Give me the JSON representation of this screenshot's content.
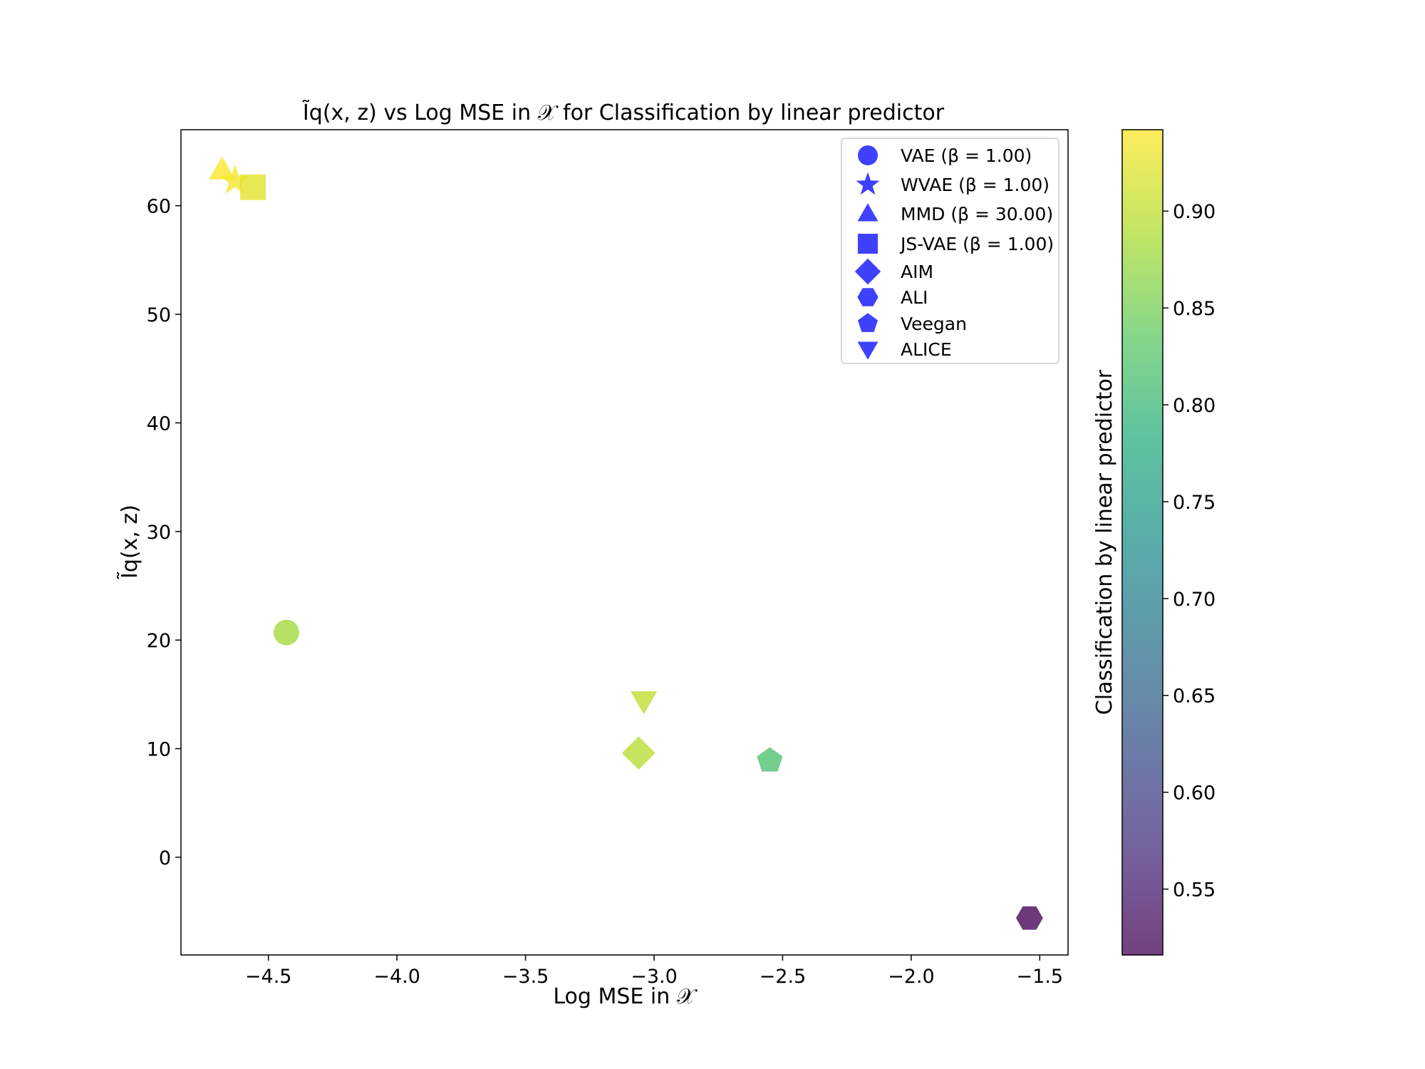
{
  "chart_data": {
    "type": "scatter",
    "title": "Ĩq(x, z) vs Log MSE in 𝒳 for Classification by linear predictor",
    "xlabel": "Log MSE in 𝒳",
    "ylabel": "Ĩq(x, z)",
    "xlim": [
      -4.84,
      -1.39
    ],
    "ylim": [
      -9,
      67
    ],
    "xticks": [
      -4.5,
      -4.0,
      -3.5,
      -3.0,
      -2.5,
      -2.0,
      -1.5
    ],
    "xtick_labels": [
      "−4.5",
      "−4.0",
      "−3.5",
      "−3.0",
      "−2.5",
      "−2.0",
      "−1.5"
    ],
    "yticks": [
      0,
      10,
      20,
      30,
      40,
      50,
      60
    ],
    "ytick_labels": [
      "0",
      "10",
      "20",
      "30",
      "40",
      "50",
      "60"
    ],
    "grid": false,
    "legend_position": "top-right",
    "legend_marker_color": "#0000ff",
    "colorbar": {
      "label": "Classification by linear predictor",
      "colormap": "viridis",
      "range": [
        0.516,
        0.942
      ],
      "ticks": [
        0.55,
        0.6,
        0.65,
        0.7,
        0.75,
        0.8,
        0.85,
        0.9
      ],
      "tick_labels": [
        "0.55",
        "0.60",
        "0.65",
        "0.70",
        "0.75",
        "0.80",
        "0.85",
        "0.90"
      ]
    },
    "series": [
      {
        "name": "VAE (β = 1.00)",
        "marker": "circle",
        "x": -4.43,
        "y": 20.7,
        "value": 0.88
      },
      {
        "name": "WVAE (β = 1.00)",
        "marker": "star",
        "x": -4.63,
        "y": 62.3,
        "value": 0.935
      },
      {
        "name": "MMD (β = 30.00)",
        "marker": "triangle-up",
        "x": -4.68,
        "y": 63.3,
        "value": 0.94
      },
      {
        "name": "JS-VAE (β = 1.00)",
        "marker": "square",
        "x": -4.56,
        "y": 61.7,
        "value": 0.925
      },
      {
        "name": "AIM",
        "marker": "diamond",
        "x": -3.06,
        "y": 9.6,
        "value": 0.895
      },
      {
        "name": "ALI",
        "marker": "hexagon",
        "x": -1.54,
        "y": -5.6,
        "value": 0.516
      },
      {
        "name": "Veegan",
        "marker": "pentagon",
        "x": -2.55,
        "y": 8.9,
        "value": 0.82
      },
      {
        "name": "ALICE",
        "marker": "triangle-down",
        "x": -3.04,
        "y": 14.4,
        "value": 0.9
      }
    ]
  }
}
